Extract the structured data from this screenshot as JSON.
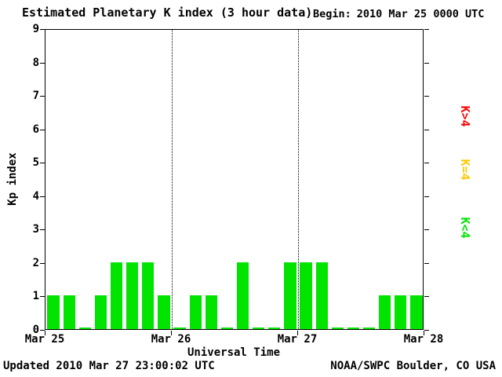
{
  "header": {
    "title": "Estimated Planetary K index (3 hour data)",
    "begin_label": "Begin:",
    "begin_value": "2010 Mar 25 0000 UTC"
  },
  "footer": {
    "updated": "Updated 2010 Mar 27 23:00:02 UTC",
    "source": "NOAA/SWPC Boulder, CO USA"
  },
  "chart_data": {
    "type": "bar",
    "title": "Estimated Planetary K index (3 hour data)",
    "ylabel": "Kp index",
    "xlabel": "Universal Time",
    "ylim": [
      0,
      9
    ],
    "yticks": [
      0,
      1,
      2,
      3,
      4,
      5,
      6,
      7,
      8,
      9
    ],
    "x_day_labels": [
      "Mar 25",
      "Mar 26",
      "Mar 27",
      "Mar 28"
    ],
    "bars_per_day": 8,
    "bar_interval_hours": 3,
    "series": [
      {
        "day": "Mar 25",
        "kp_values": [
          1,
          1,
          0,
          1,
          2,
          2,
          2,
          1
        ]
      },
      {
        "day": "Mar 26",
        "kp_values": [
          0,
          1,
          1,
          0,
          2,
          0,
          0,
          2
        ]
      },
      {
        "day": "Mar 27",
        "kp_values": [
          2,
          2,
          0,
          0,
          0,
          1,
          1,
          1
        ]
      }
    ],
    "color_rule": "green K<4, yellow K=4, red K>4",
    "colors": {
      "k_below_4": "#00E400",
      "k_equal_4": "#FFC800",
      "k_above_4": "#FF0000"
    },
    "legend": [
      {
        "label": "K>4",
        "color": "#FF0000"
      },
      {
        "label": "K=4",
        "color": "#FFC800"
      },
      {
        "label": "K<4",
        "color": "#00E400"
      }
    ],
    "dotted_gridlines_at_days": [
      1,
      2
    ],
    "grid": "dotted vertical lines at day boundaries only",
    "legend_position": "right, rotated 90deg"
  }
}
